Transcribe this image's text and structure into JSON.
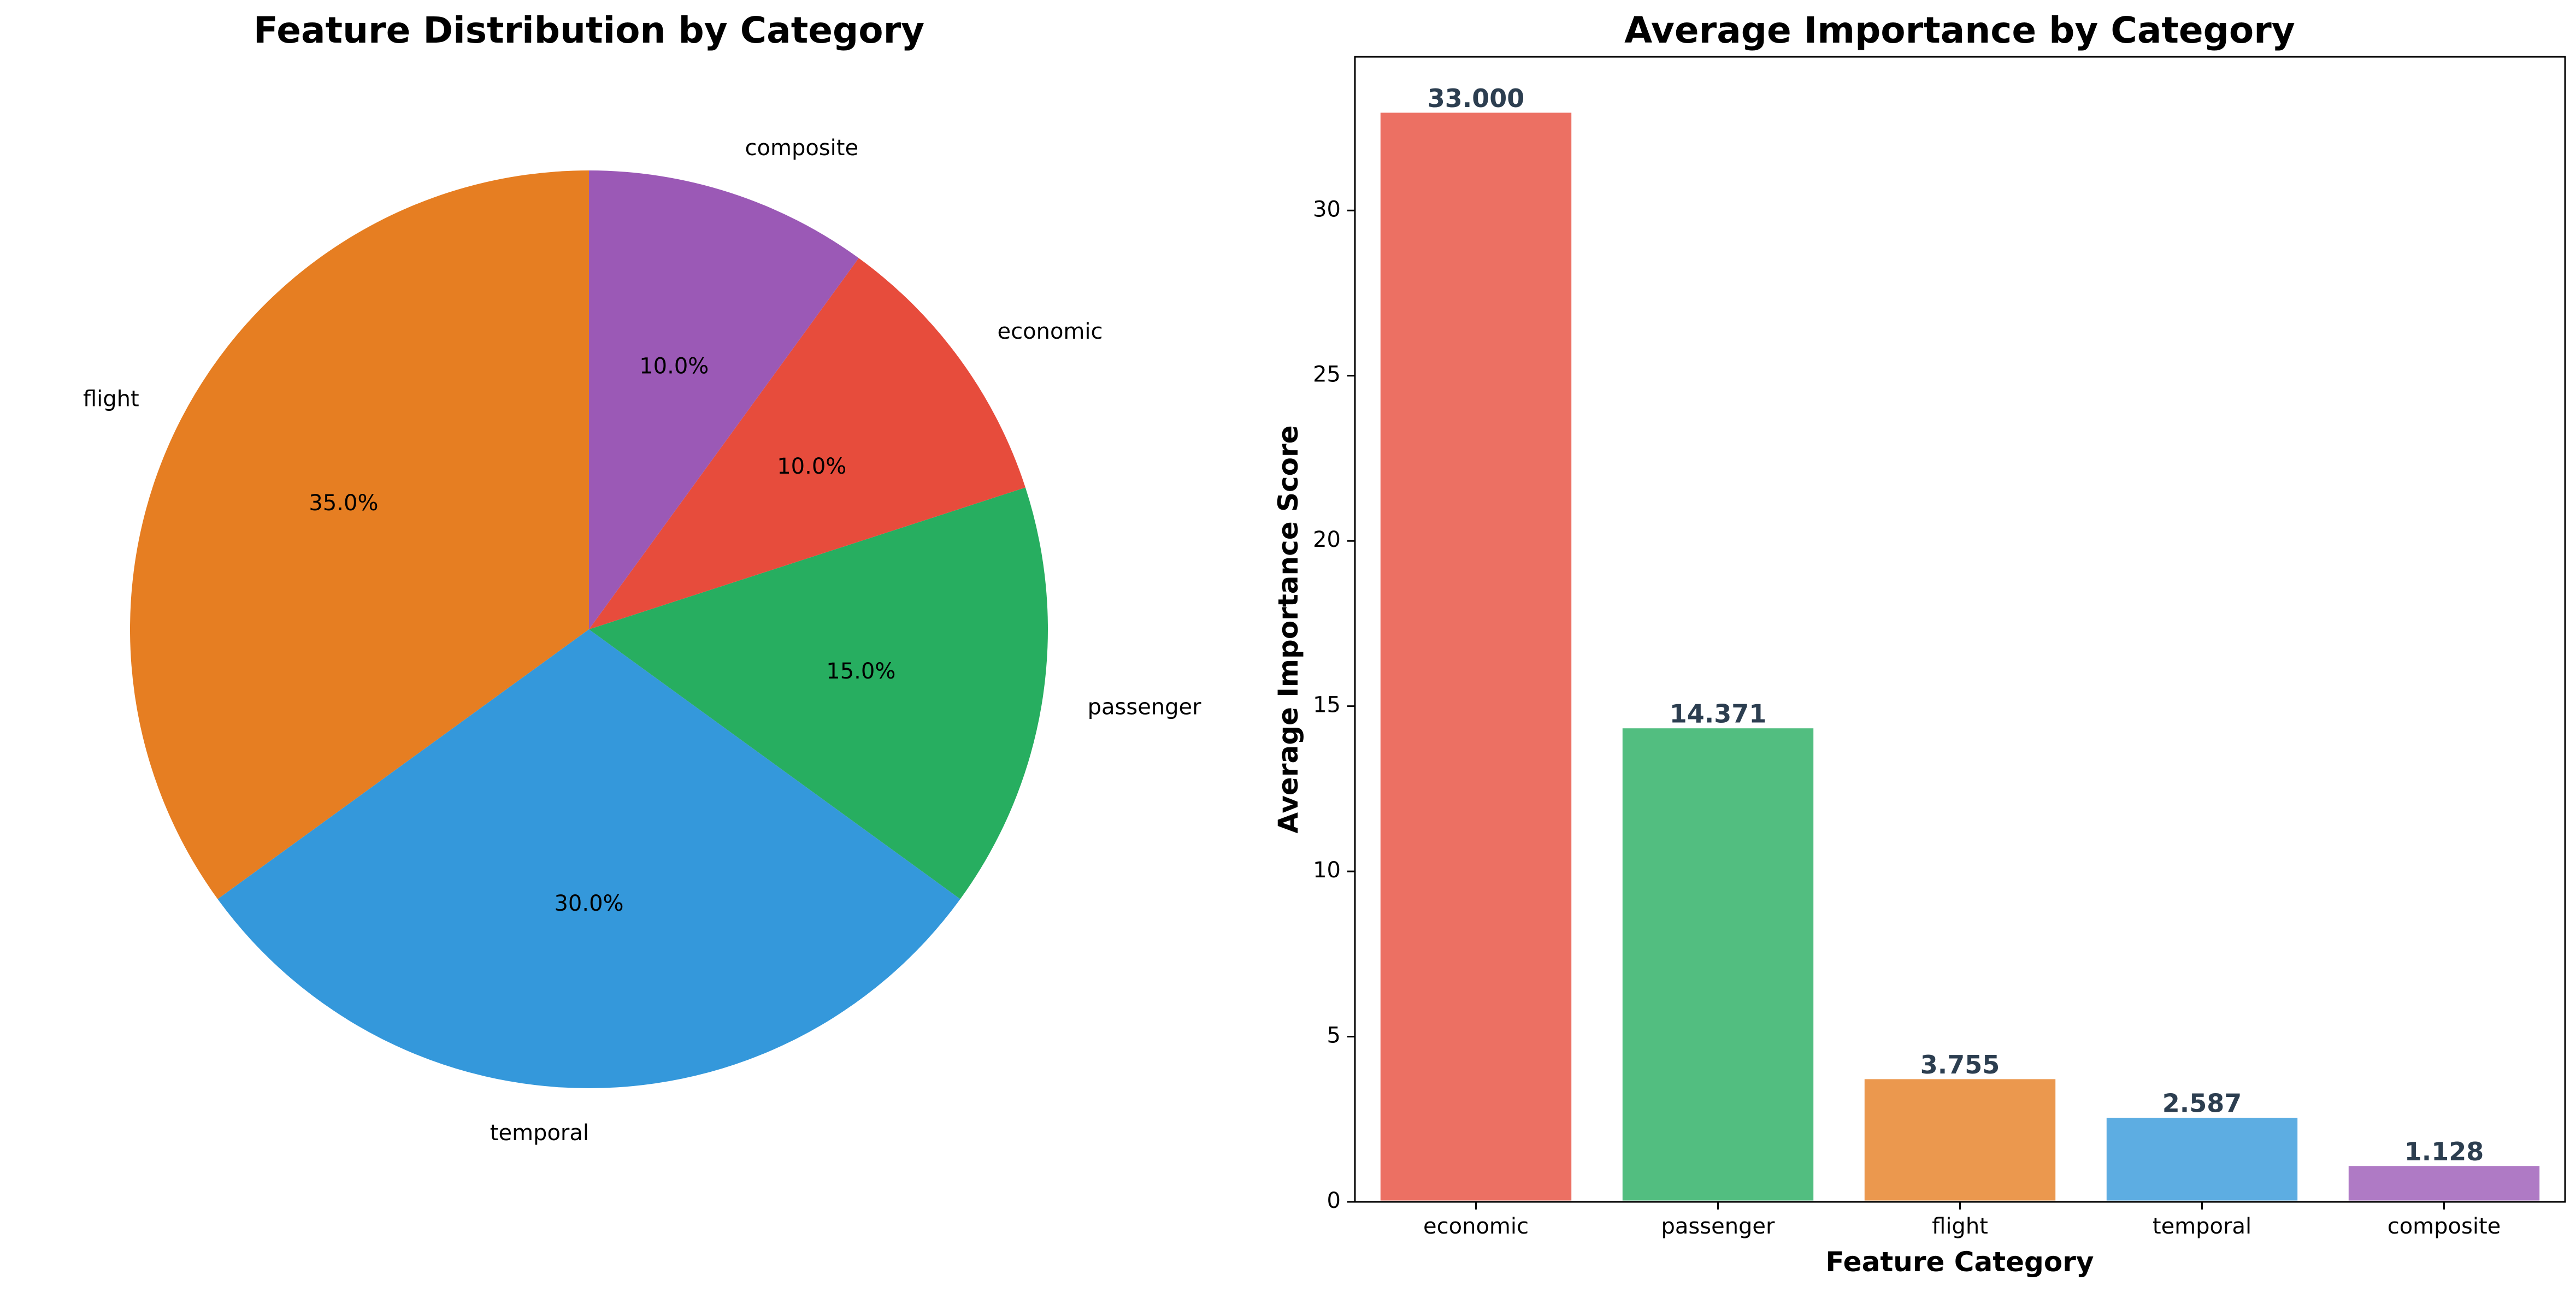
{
  "chart_data": [
    {
      "type": "pie",
      "title": "Feature Distribution by Category",
      "categories": [
        "flight",
        "temporal",
        "passenger",
        "economic",
        "composite"
      ],
      "values": [
        35.0,
        30.0,
        15.0,
        10.0,
        10.0
      ],
      "percent_labels": [
        "35.0%",
        "30.0%",
        "15.0%",
        "10.0%",
        "10.0%"
      ],
      "colors": [
        "#e67e22",
        "#3498db",
        "#27ae60",
        "#e74c3c",
        "#9b59b6"
      ],
      "start_angle_deg": 90,
      "direction": "counterclockwise"
    },
    {
      "type": "bar",
      "title": "Average Importance by Category",
      "xlabel": "Feature Category",
      "ylabel": "Average Importance Score",
      "categories": [
        "economic",
        "passenger",
        "flight",
        "temporal",
        "composite"
      ],
      "values": [
        33.0,
        14.371,
        3.755,
        2.587,
        1.128
      ],
      "value_labels": [
        "33.000",
        "14.371",
        "3.755",
        "2.587",
        "1.128"
      ],
      "colors": [
        "#e74c3c",
        "#27ae60",
        "#e67e22",
        "#3498db",
        "#9b59b6"
      ],
      "ylim": [
        0,
        34.65
      ],
      "yticks": [
        0,
        5,
        10,
        15,
        20,
        25,
        30
      ],
      "grid": false
    }
  ]
}
